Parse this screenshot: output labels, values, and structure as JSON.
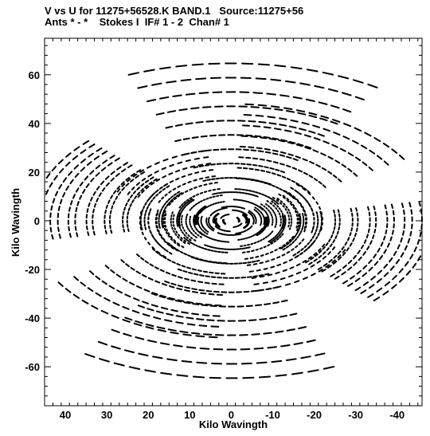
{
  "chart_data": {
    "type": "scatter",
    "title": "V vs U for 11275+56528.K BAND.1   Source:11275+56",
    "subtitle": "Ants * - *    Stokes I  IF# 1 - 2  Chan# 1",
    "xlabel": "Kilo Wavingth",
    "ylabel": "Kilo Wavingth",
    "xlim": [
      45,
      -46
    ],
    "ylim": [
      -76,
      75
    ],
    "x_reversed": true,
    "grid": false,
    "legend": "none",
    "marker_color": "#000000",
    "x_ticks": [
      40,
      30,
      20,
      10,
      0,
      -10,
      -20,
      -30,
      -40
    ],
    "x_tick_labels": [
      "40",
      "30",
      "20",
      "10",
      "0",
      "-10",
      "-20",
      "-30",
      "-40"
    ],
    "y_ticks": [
      60,
      40,
      20,
      0,
      -20,
      -40,
      -60
    ],
    "y_tick_labels": [
      "60",
      "40",
      "20",
      "0",
      "-20",
      "-40",
      "-60"
    ],
    "uv_model": {
      "symmetric": true,
      "arm_angles_deg": [
        94,
        16,
        -18,
        -60,
        -130,
        -164,
        166
      ],
      "arm_lengths": [
        66,
        48,
        22,
        49,
        30,
        46,
        20
      ],
      "arm_weights": [
        1.0,
        0.8,
        0.35,
        0.85,
        0.55,
        0.8,
        0.5
      ],
      "hour_angle_sweep_deg": 52,
      "tracks_per_arm": 11
    }
  }
}
